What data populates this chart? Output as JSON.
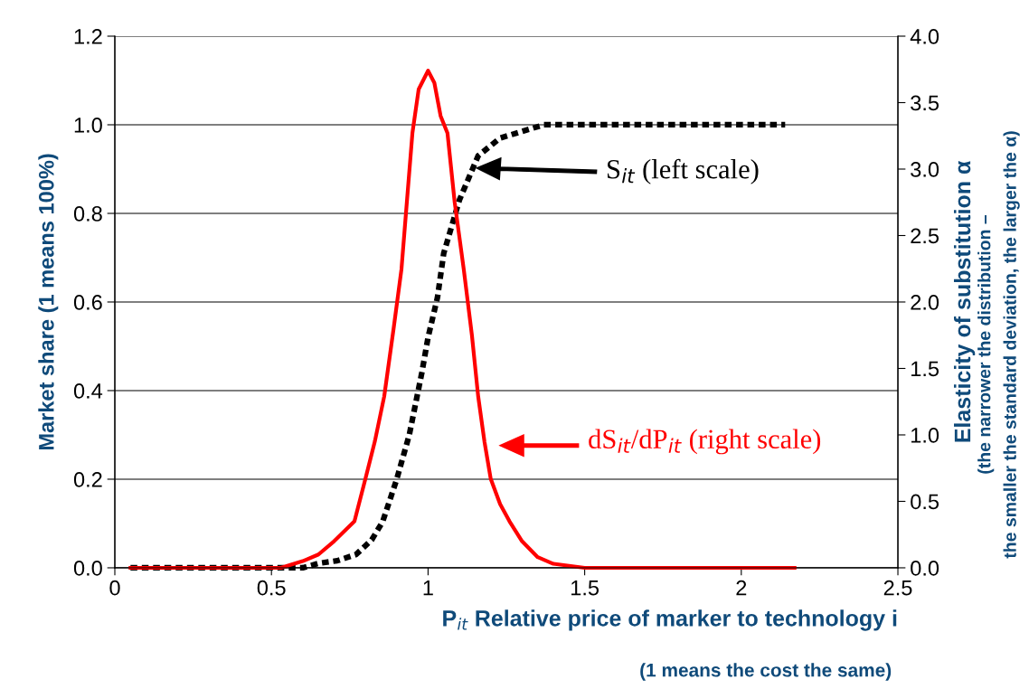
{
  "chart_data": {
    "type": "line",
    "xlabel": "P$_{it}$ Relative price of marker to technology i",
    "ylabel": "Market share (1 means 100%)",
    "y2label": "Elasticity of substitution α",
    "xlim": [
      0,
      2.5
    ],
    "xticks": [
      0,
      0.5,
      1,
      1.5,
      2,
      2.5
    ],
    "ylim": [
      0,
      1.2
    ],
    "yticks": [
      {
        "value": 0,
        "label": "0.0"
      },
      {
        "value": 0.2,
        "label": "0.2"
      },
      {
        "value": 0.4,
        "label": "0.4"
      },
      {
        "value": 0.6,
        "label": "0.6"
      },
      {
        "value": 0.8,
        "label": "0.8"
      },
      {
        "value": 1.0,
        "label": "1.0"
      },
      {
        "value": 1.2,
        "label": "1.2"
      }
    ],
    "y2lim": [
      0,
      4.0
    ],
    "y2ticks": [
      {
        "value": 0,
        "label": "0.0"
      },
      {
        "value": 0.5,
        "label": "0.5"
      },
      {
        "value": 1.0,
        "label": "1.0"
      },
      {
        "value": 1.5,
        "label": "1.5"
      },
      {
        "value": 2.0,
        "label": "2.0"
      },
      {
        "value": 2.5,
        "label": "2.5"
      },
      {
        "value": 3.0,
        "label": "3.0"
      },
      {
        "value": 3.5,
        "label": "3.5"
      },
      {
        "value": 4.0,
        "label": "4.0"
      }
    ],
    "grid": "y",
    "legend": false,
    "series": [
      {
        "color": "#000000",
        "line_style": "dashed",
        "x": [
          0.05,
          0.6,
          0.65,
          0.71,
          0.77,
          0.82,
          0.855,
          0.9,
          0.94,
          0.98,
          1.0,
          1.03,
          1.05,
          1.1,
          1.16,
          1.23,
          1.37,
          2.14
        ],
        "values": [
          0,
          0,
          0.01,
          0.016,
          0.03,
          0.063,
          0.104,
          0.2,
          0.3,
          0.44,
          0.52,
          0.61,
          0.71,
          0.83,
          0.93,
          0.97,
          1.0,
          1.0
        ]
      },
      {
        "color": "#ff0000",
        "line_style": "solid",
        "axis": "y2",
        "x": [
          0.05,
          0.15,
          0.25,
          0.35,
          0.45,
          0.53,
          0.6,
          0.65,
          0.7,
          0.765,
          0.8,
          0.83,
          0.86,
          0.89,
          0.915,
          0.95,
          0.97,
          1.0,
          1.02,
          1.04,
          1.062,
          1.085,
          1.114,
          1.14,
          1.16,
          1.18,
          1.2,
          1.23,
          1.26,
          1.3,
          1.35,
          1.4,
          1.5,
          1.7,
          1.9,
          2.17
        ],
        "values": [
          0,
          0,
          0,
          0,
          0,
          0,
          0.05,
          0.1,
          0.2,
          0.35,
          0.67,
          0.95,
          1.29,
          1.8,
          2.245,
          3.27,
          3.6,
          3.74,
          3.65,
          3.4,
          3.27,
          2.75,
          2.245,
          1.75,
          1.29,
          0.95,
          0.67,
          0.48,
          0.35,
          0.2,
          0.08,
          0.03,
          0,
          0,
          0,
          0
        ]
      }
    ],
    "annotations": [
      "S$_{it}$ (left scale)",
      "dS$_{it}$/dP$_{it}$ (right scale)",
      "(1 means the cost the same)",
      "(the narrower the distribution –",
      "the smaller the standard deviation, the larger the α)"
    ]
  }
}
